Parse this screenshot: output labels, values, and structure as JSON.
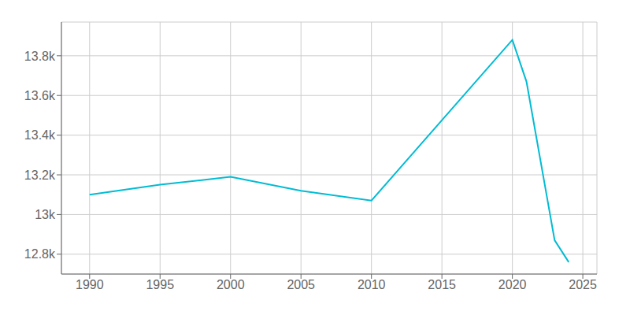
{
  "chart_data": {
    "type": "line",
    "x": [
      1990,
      1995,
      2000,
      2005,
      2010,
      2020,
      2021,
      2023,
      2024
    ],
    "values": [
      13100,
      13150,
      13190,
      13120,
      13070,
      13880,
      13670,
      12870,
      12760
    ],
    "color": "#00BCD4",
    "xlim": [
      1988,
      2026
    ],
    "ylim": [
      12700,
      13970
    ],
    "xticks": [
      1990,
      1995,
      2000,
      2005,
      2010,
      2015,
      2020,
      2025
    ],
    "yticks": [
      {
        "value": 12800,
        "label": "12.8k"
      },
      {
        "value": 13000,
        "label": "13k"
      },
      {
        "value": 13200,
        "label": "13.2k"
      },
      {
        "value": 13400,
        "label": "13.4k"
      },
      {
        "value": 13600,
        "label": "13.6k"
      },
      {
        "value": 13800,
        "label": "13.8k"
      }
    ],
    "grid": true
  }
}
